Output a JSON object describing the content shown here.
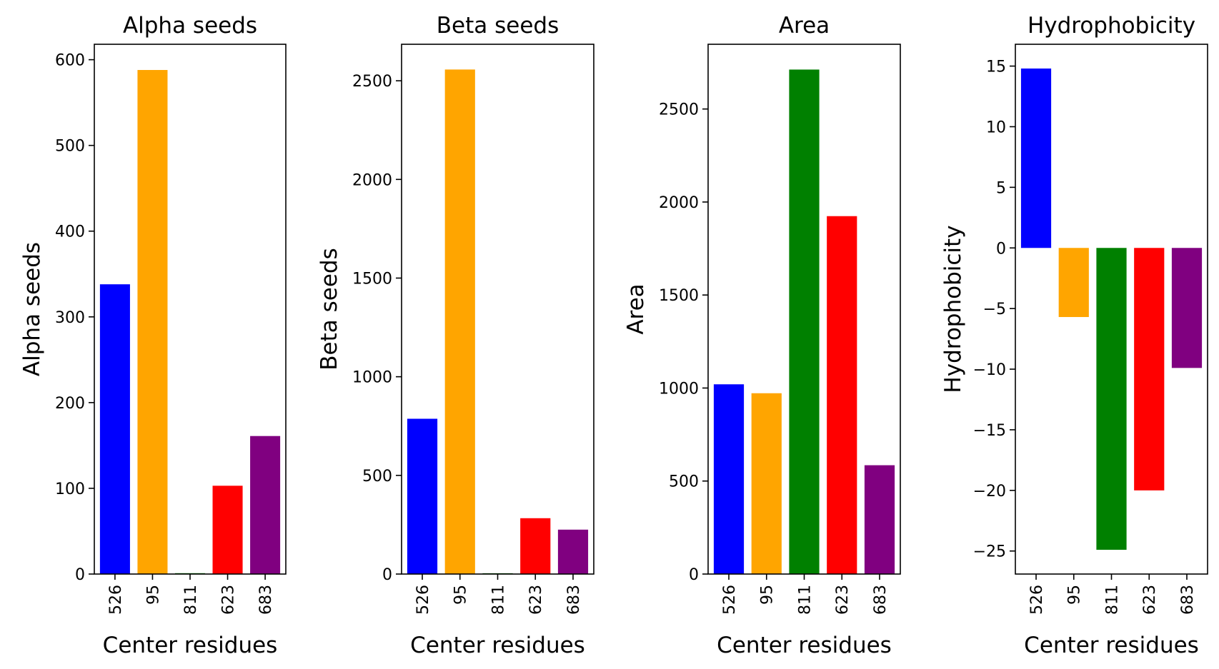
{
  "chart_data": [
    {
      "type": "bar",
      "title": "Alpha seeds",
      "xlabel": "Center residues",
      "ylabel": "Alpha seeds",
      "categories": [
        "526",
        "95",
        "811",
        "623",
        "683"
      ],
      "values": [
        338,
        588,
        1,
        103,
        161
      ],
      "colors": [
        "#0000ff",
        "#ffa500",
        "#008000",
        "#ff0000",
        "#800080"
      ],
      "ylim": [
        0,
        618
      ],
      "yticks": [
        0,
        100,
        200,
        300,
        400,
        500,
        600
      ],
      "ytick_labels": [
        "0",
        "100",
        "200",
        "300",
        "400",
        "500",
        "600"
      ]
    },
    {
      "type": "bar",
      "title": "Beta seeds",
      "xlabel": "Center residues",
      "ylabel": "Beta seeds",
      "categories": [
        "526",
        "95",
        "811",
        "623",
        "683"
      ],
      "values": [
        787,
        2557,
        4,
        283,
        225
      ],
      "colors": [
        "#0000ff",
        "#ffa500",
        "#008000",
        "#ff0000",
        "#800080"
      ],
      "ylim": [
        0,
        2685
      ],
      "yticks": [
        0,
        500,
        1000,
        1500,
        2000,
        2500
      ],
      "ytick_labels": [
        "0",
        "500",
        "1000",
        "1500",
        "2000",
        "2500"
      ]
    },
    {
      "type": "bar",
      "title": "Area",
      "xlabel": "Center residues",
      "ylabel": "Area",
      "categories": [
        "526",
        "95",
        "811",
        "623",
        "683"
      ],
      "values": [
        1020,
        972,
        2712,
        1924,
        585
      ],
      "colors": [
        "#0000ff",
        "#ffa500",
        "#008000",
        "#ff0000",
        "#800080"
      ],
      "ylim": [
        0,
        2848
      ],
      "yticks": [
        0,
        500,
        1000,
        1500,
        2000,
        2500
      ],
      "ytick_labels": [
        "0",
        "500",
        "1000",
        "1500",
        "2000",
        "2500"
      ]
    },
    {
      "type": "bar",
      "title": "Hydrophobicity",
      "xlabel": "Center residues",
      "ylabel": "Hydrophobicity",
      "categories": [
        "526",
        "95",
        "811",
        "623",
        "683"
      ],
      "values": [
        14.8,
        -5.7,
        -24.9,
        -20.0,
        -9.9
      ],
      "colors": [
        "#0000ff",
        "#ffa500",
        "#008000",
        "#ff0000",
        "#800080"
      ],
      "ylim": [
        -26.9,
        16.8
      ],
      "yticks": [
        -25,
        -20,
        -15,
        -10,
        -5,
        0,
        5,
        10,
        15
      ],
      "ytick_labels": [
        "−25",
        "−20",
        "−15",
        "−10",
        "−5",
        "0",
        "5",
        "10",
        "15"
      ]
    }
  ]
}
